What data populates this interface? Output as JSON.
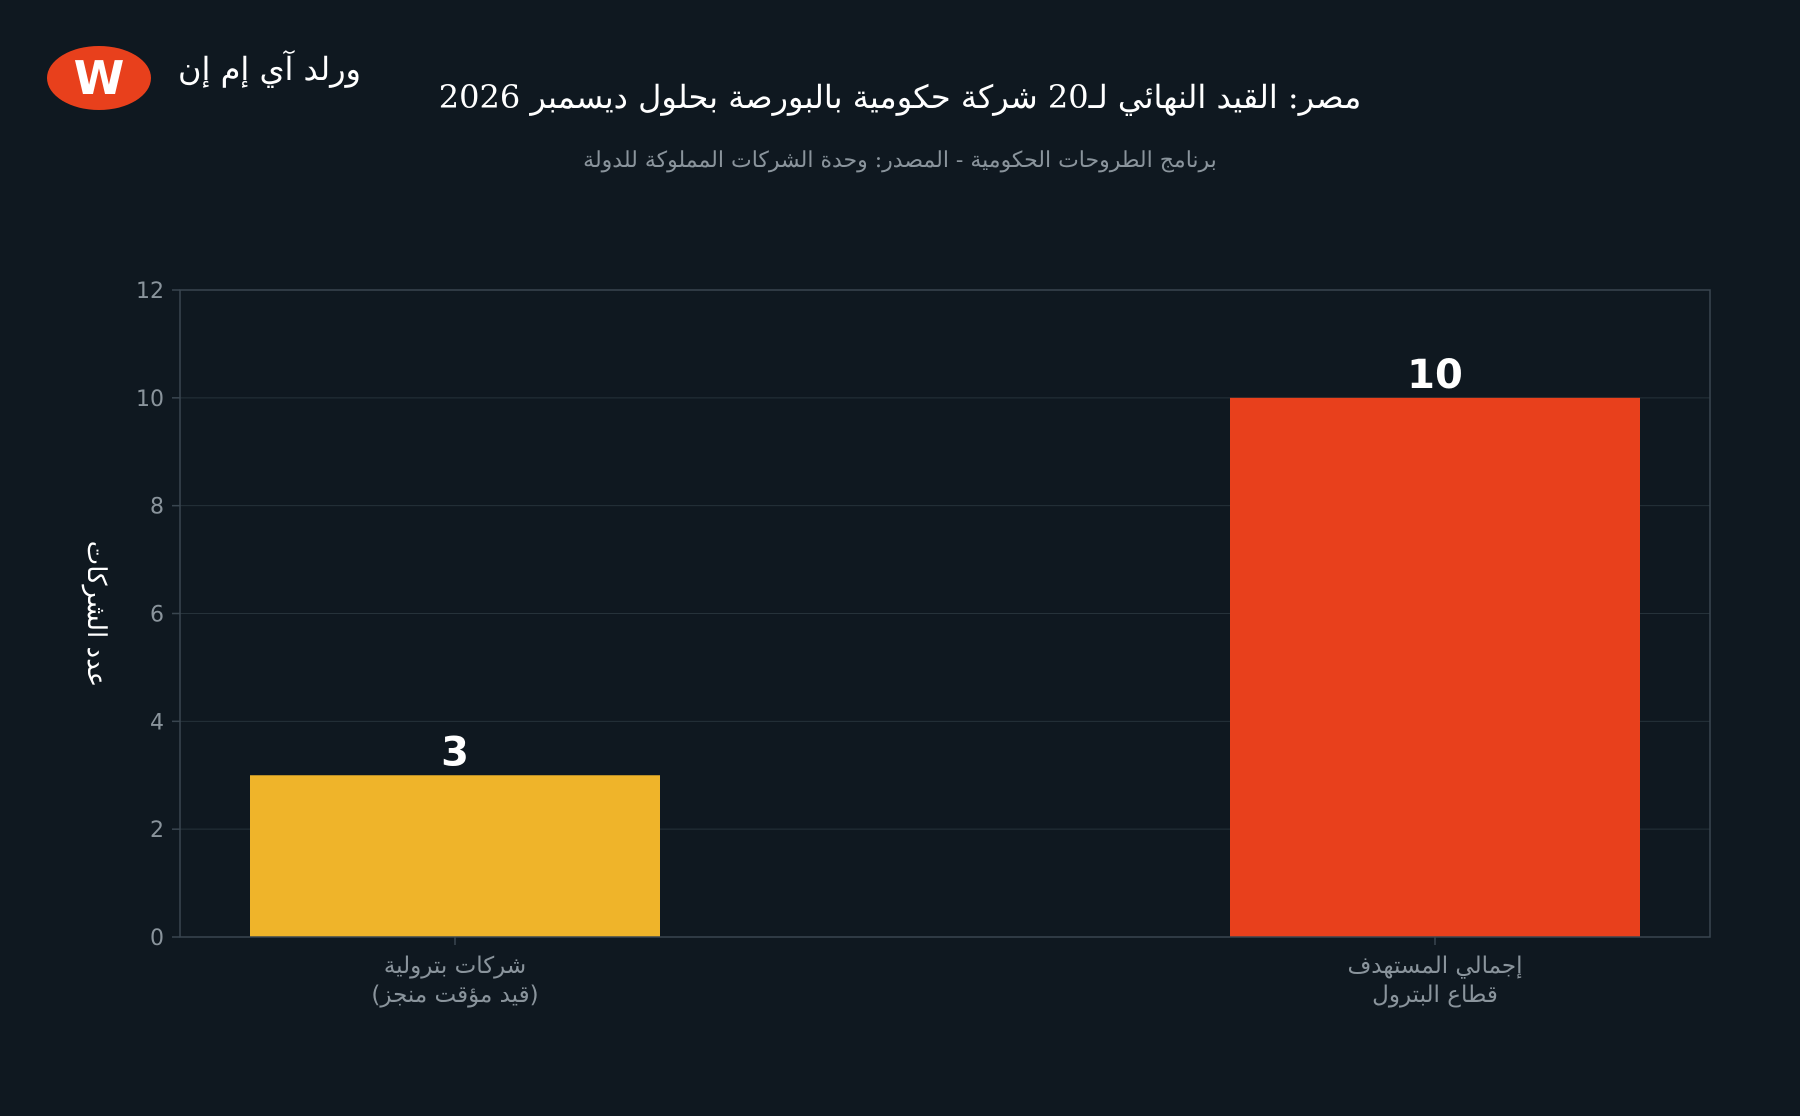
{
  "brand": {
    "logo_letter": "W",
    "name": "ورلد آي إم إن"
  },
  "colors": {
    "background": "#0f1820",
    "grid": "#26323a",
    "axis": "#3a4650",
    "logo": "#e8401c"
  },
  "chart_data": {
    "type": "bar",
    "title": "مصر: القيد النهائي لـ20 شركة حكومية بالبورصة بحلول ديسمبر 2026",
    "subtitle": "برنامج الطروحات الحكومية - المصدر: وحدة الشركات المملوكة للدولة",
    "ylabel": "عدد الشركات",
    "xlabel": "",
    "categories": [
      [
        "شركات بترولية",
        "(قيد مؤقت منجز)"
      ],
      [
        "إجمالي المستهدف",
        "قطاع البترول"
      ]
    ],
    "values": [
      3,
      10
    ],
    "value_labels": [
      "3",
      "10"
    ],
    "bar_colors": [
      "#efb42a",
      "#e8401c"
    ],
    "ylim": [
      0,
      12
    ],
    "yticks": [
      0,
      2,
      4,
      6,
      8,
      10,
      12
    ],
    "grid": true,
    "legend": "none"
  }
}
